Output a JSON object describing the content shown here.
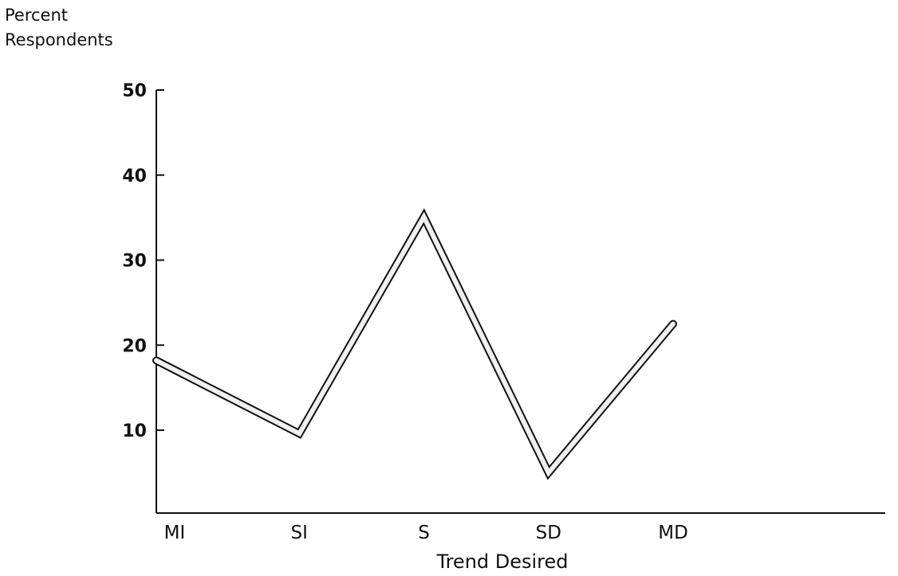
{
  "chart_data": {
    "type": "line",
    "ylabel_line1": "Percent",
    "ylabel_line2": "Respondents",
    "xlabel": "Trend Desired",
    "categories": [
      "MI",
      "SI",
      "S",
      "SD",
      "MD"
    ],
    "series": [
      {
        "values": [
          18.2,
          9.6,
          35.1,
          5.0,
          22.5
        ]
      }
    ],
    "ylim": [
      0,
      50
    ],
    "yticks": [
      10,
      20,
      30,
      40,
      50
    ],
    "grid": false,
    "legend": "none",
    "line_color": "#111111",
    "line_fill": "#f0f0f0"
  }
}
